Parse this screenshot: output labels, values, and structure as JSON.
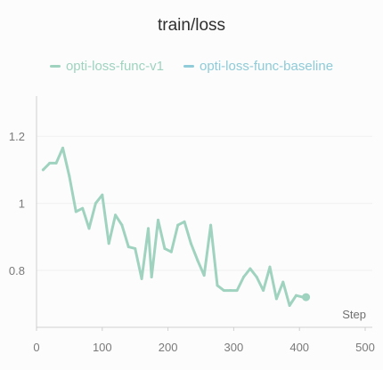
{
  "chart_data": {
    "type": "line",
    "title": "train/loss",
    "xlabel": "Step",
    "ylabel": "",
    "xlim": [
      0,
      500
    ],
    "ylim": [
      0.63,
      1.32
    ],
    "x_ticks": [
      0,
      100,
      200,
      300,
      400,
      500
    ],
    "y_ticks": [
      0.8,
      1,
      1.2
    ],
    "x_tick_labels": [
      "0",
      "100",
      "200",
      "300",
      "400",
      "500"
    ],
    "y_tick_labels": [
      "0.8",
      "1",
      "1.2"
    ],
    "grid": "horizontal",
    "legend_position": "top",
    "series": [
      {
        "name": "opti-loss-func-v1",
        "color": "#9fd3c0",
        "points": [
          [
            10,
            1.1
          ],
          [
            20,
            1.12
          ],
          [
            30,
            1.12
          ],
          [
            40,
            1.165
          ],
          [
            50,
            1.08
          ],
          [
            60,
            0.975
          ],
          [
            70,
            0.985
          ],
          [
            80,
            0.925
          ],
          [
            90,
            1.0
          ],
          [
            100,
            1.025
          ],
          [
            110,
            0.88
          ],
          [
            120,
            0.965
          ],
          [
            130,
            0.935
          ],
          [
            140,
            0.87
          ],
          [
            150,
            0.865
          ],
          [
            160,
            0.775
          ],
          [
            170,
            0.925
          ],
          [
            175,
            0.78
          ],
          [
            185,
            0.95
          ],
          [
            195,
            0.865
          ],
          [
            205,
            0.855
          ],
          [
            215,
            0.935
          ],
          [
            225,
            0.945
          ],
          [
            235,
            0.88
          ],
          [
            245,
            0.83
          ],
          [
            255,
            0.785
          ],
          [
            265,
            0.935
          ],
          [
            275,
            0.755
          ],
          [
            285,
            0.74
          ],
          [
            295,
            0.74
          ],
          [
            305,
            0.74
          ],
          [
            315,
            0.78
          ],
          [
            325,
            0.805
          ],
          [
            335,
            0.78
          ],
          [
            345,
            0.74
          ],
          [
            355,
            0.81
          ],
          [
            365,
            0.715
          ],
          [
            375,
            0.765
          ],
          [
            385,
            0.695
          ],
          [
            395,
            0.725
          ],
          [
            405,
            0.72
          ]
        ],
        "end_marker": [
          410,
          0.72
        ]
      },
      {
        "name": "opti-loss-func-baseline",
        "color": "#8fcbd8",
        "points": []
      }
    ]
  }
}
